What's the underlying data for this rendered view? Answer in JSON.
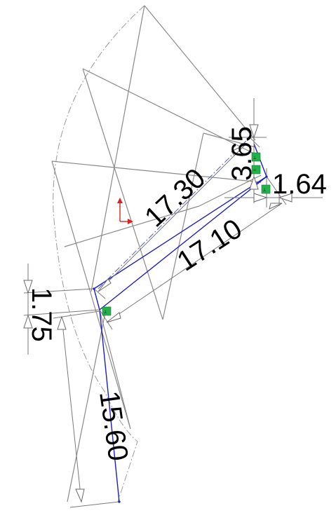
{
  "dimensions": {
    "d_17_30": "17.30",
    "d_17_10": "17.10",
    "d_3_65": "3.65",
    "d_1_64": "1.64",
    "d_1_75": "1.75",
    "d_15_60": "15.60"
  },
  "relations": {
    "r1": "⊥",
    "r2": "=",
    "r3": "⊥",
    "r4": "⊥"
  },
  "colors": {
    "sketch_blue": "#1f1fbf",
    "relation_green": "#22b14c",
    "origin_red": "#e02020"
  }
}
